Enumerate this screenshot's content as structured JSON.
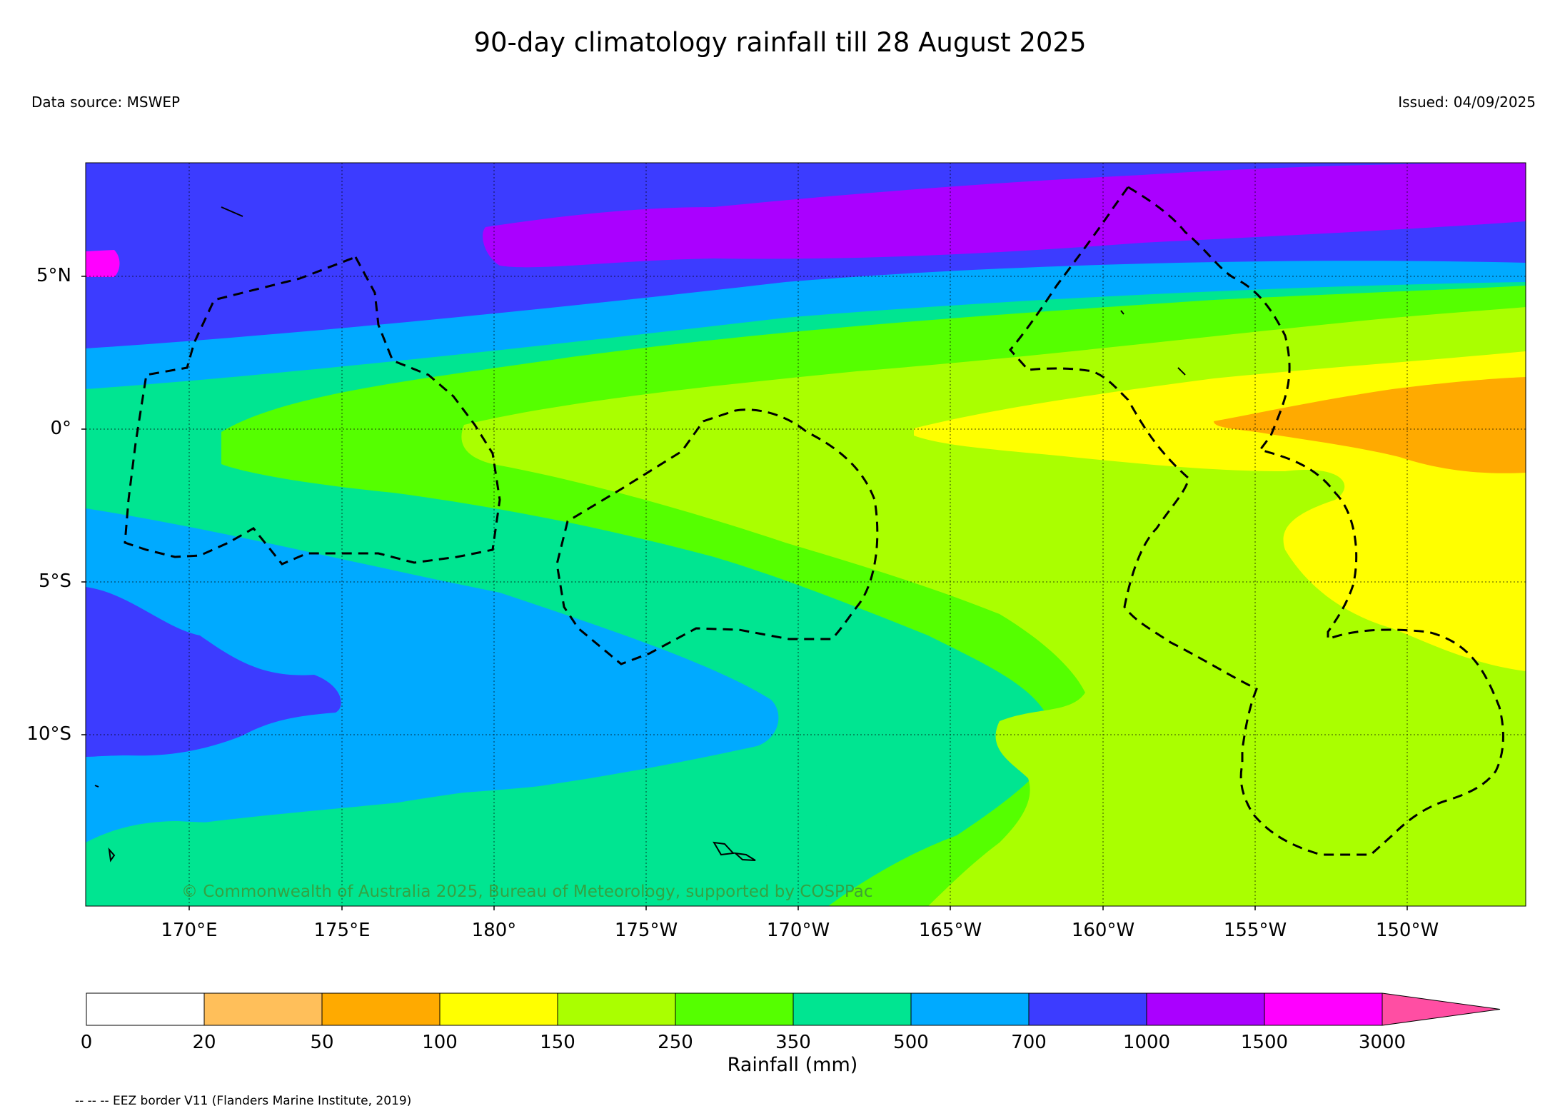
{
  "title": "90-day climatology rainfall till 28 August 2025",
  "data_source": "Data source: MSWEP",
  "issued": "Issued: 04/09/2025",
  "copyright": "© Commonwealth of Australia 2025, Bureau of Meteorology, supported by COSPPac",
  "footnote": "-- -- -- EEZ border V11 (Flanders Marine Institute, 2019)",
  "lat_labels": [
    "5°N",
    "0°",
    "5°S",
    "10°S"
  ],
  "lon_labels": [
    "170°E",
    "175°E",
    "180°",
    "175°W",
    "170°W",
    "165°W",
    "160°W",
    "155°W",
    "150°W"
  ],
  "colorbar": {
    "title": "Rainfall (mm)",
    "ticks": [
      "0",
      "20",
      "50",
      "100",
      "150",
      "250",
      "350",
      "500",
      "700",
      "1000",
      "1500",
      "3000"
    ],
    "colors": [
      "#ffffff",
      "#ffbf5a",
      "#ffaa00",
      "#ffff00",
      "#aaff00",
      "#55ff00",
      "#00e591",
      "#00aaff",
      "#3c3cff",
      "#aa00ff",
      "#ff00ff",
      "#ff4ea3"
    ]
  },
  "colors": {
    "r1000_1500": "#aa00ff",
    "r700_1000": "#3c3cff",
    "r500_700": "#00aaff",
    "r350_500": "#00e591",
    "r250_350": "#55ff00",
    "r150_250": "#aaff00",
    "r100_150": "#ffff00",
    "r50_100": "#ffaa00",
    "r1500_3000": "#ff00ff"
  }
}
